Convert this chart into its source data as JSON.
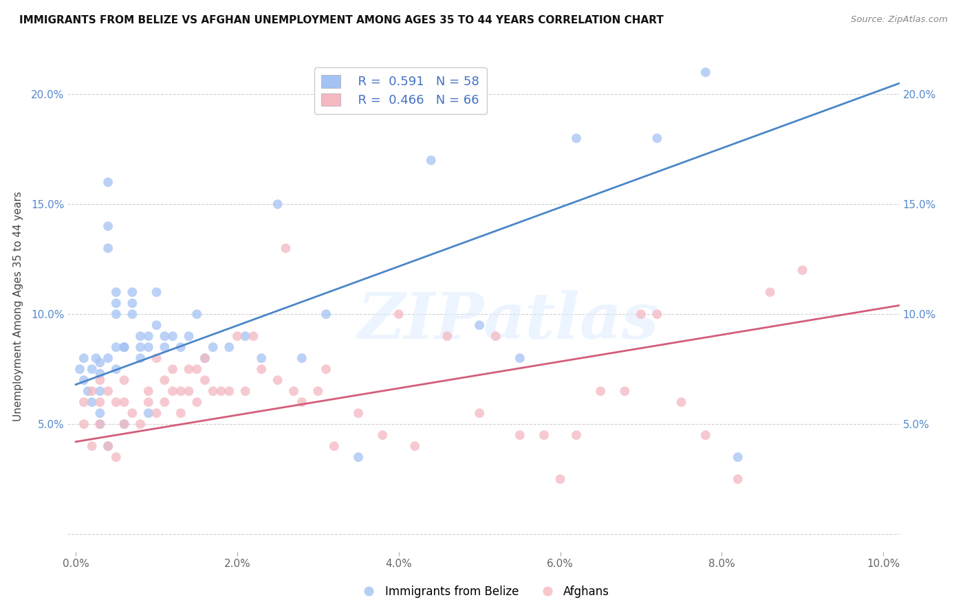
{
  "title": "IMMIGRANTS FROM BELIZE VS AFGHAN UNEMPLOYMENT AMONG AGES 35 TO 44 YEARS CORRELATION CHART",
  "source": "Source: ZipAtlas.com",
  "ylabel": "Unemployment Among Ages 35 to 44 years",
  "blue_color": "#a4c2f4",
  "pink_color": "#f4b8c1",
  "blue_line_color": "#4a86c8",
  "pink_line_color": "#d45c78",
  "watermark_color": "#ddeeff",
  "xlim": [
    -0.001,
    0.102
  ],
  "ylim": [
    -0.008,
    0.215
  ],
  "x_ticks": [
    0.0,
    0.02,
    0.04,
    0.06,
    0.08,
    0.1
  ],
  "y_ticks": [
    0.0,
    0.05,
    0.1,
    0.15,
    0.2
  ],
  "blue_line_x0": 0.0,
  "blue_line_y0": 0.068,
  "blue_line_x1": 0.102,
  "blue_line_y1": 0.205,
  "pink_line_x0": 0.0,
  "pink_line_y0": 0.042,
  "pink_line_x1": 0.102,
  "pink_line_y1": 0.104,
  "blue_x": [
    0.0005,
    0.001,
    0.001,
    0.0015,
    0.002,
    0.002,
    0.0025,
    0.003,
    0.003,
    0.003,
    0.003,
    0.003,
    0.004,
    0.004,
    0.004,
    0.004,
    0.004,
    0.005,
    0.005,
    0.005,
    0.005,
    0.005,
    0.006,
    0.006,
    0.006,
    0.007,
    0.007,
    0.007,
    0.008,
    0.008,
    0.008,
    0.009,
    0.009,
    0.009,
    0.01,
    0.01,
    0.011,
    0.011,
    0.012,
    0.013,
    0.014,
    0.015,
    0.016,
    0.017,
    0.019,
    0.021,
    0.023,
    0.025,
    0.028,
    0.031,
    0.035,
    0.044,
    0.05,
    0.055,
    0.062,
    0.072,
    0.078,
    0.082
  ],
  "blue_y": [
    0.075,
    0.08,
    0.07,
    0.065,
    0.075,
    0.06,
    0.08,
    0.078,
    0.073,
    0.065,
    0.055,
    0.05,
    0.16,
    0.14,
    0.13,
    0.08,
    0.04,
    0.11,
    0.105,
    0.1,
    0.085,
    0.075,
    0.085,
    0.085,
    0.05,
    0.11,
    0.105,
    0.1,
    0.09,
    0.085,
    0.08,
    0.09,
    0.085,
    0.055,
    0.11,
    0.095,
    0.09,
    0.085,
    0.09,
    0.085,
    0.09,
    0.1,
    0.08,
    0.085,
    0.085,
    0.09,
    0.08,
    0.15,
    0.08,
    0.1,
    0.035,
    0.17,
    0.095,
    0.08,
    0.18,
    0.18,
    0.21,
    0.035
  ],
  "pink_x": [
    0.001,
    0.001,
    0.002,
    0.002,
    0.003,
    0.003,
    0.003,
    0.004,
    0.004,
    0.005,
    0.005,
    0.006,
    0.006,
    0.006,
    0.007,
    0.008,
    0.009,
    0.009,
    0.01,
    0.01,
    0.011,
    0.011,
    0.012,
    0.012,
    0.013,
    0.013,
    0.014,
    0.014,
    0.015,
    0.015,
    0.016,
    0.016,
    0.017,
    0.018,
    0.019,
    0.02,
    0.021,
    0.022,
    0.023,
    0.025,
    0.026,
    0.027,
    0.028,
    0.03,
    0.031,
    0.032,
    0.035,
    0.038,
    0.04,
    0.042,
    0.046,
    0.05,
    0.052,
    0.055,
    0.058,
    0.06,
    0.062,
    0.065,
    0.068,
    0.07,
    0.072,
    0.075,
    0.078,
    0.082,
    0.086,
    0.09
  ],
  "pink_y": [
    0.06,
    0.05,
    0.065,
    0.04,
    0.07,
    0.06,
    0.05,
    0.065,
    0.04,
    0.06,
    0.035,
    0.07,
    0.06,
    0.05,
    0.055,
    0.05,
    0.065,
    0.06,
    0.08,
    0.055,
    0.07,
    0.06,
    0.075,
    0.065,
    0.065,
    0.055,
    0.075,
    0.065,
    0.075,
    0.06,
    0.08,
    0.07,
    0.065,
    0.065,
    0.065,
    0.09,
    0.065,
    0.09,
    0.075,
    0.07,
    0.13,
    0.065,
    0.06,
    0.065,
    0.075,
    0.04,
    0.055,
    0.045,
    0.1,
    0.04,
    0.09,
    0.055,
    0.09,
    0.045,
    0.045,
    0.025,
    0.045,
    0.065,
    0.065,
    0.1,
    0.1,
    0.06,
    0.045,
    0.025,
    0.11,
    0.12
  ]
}
